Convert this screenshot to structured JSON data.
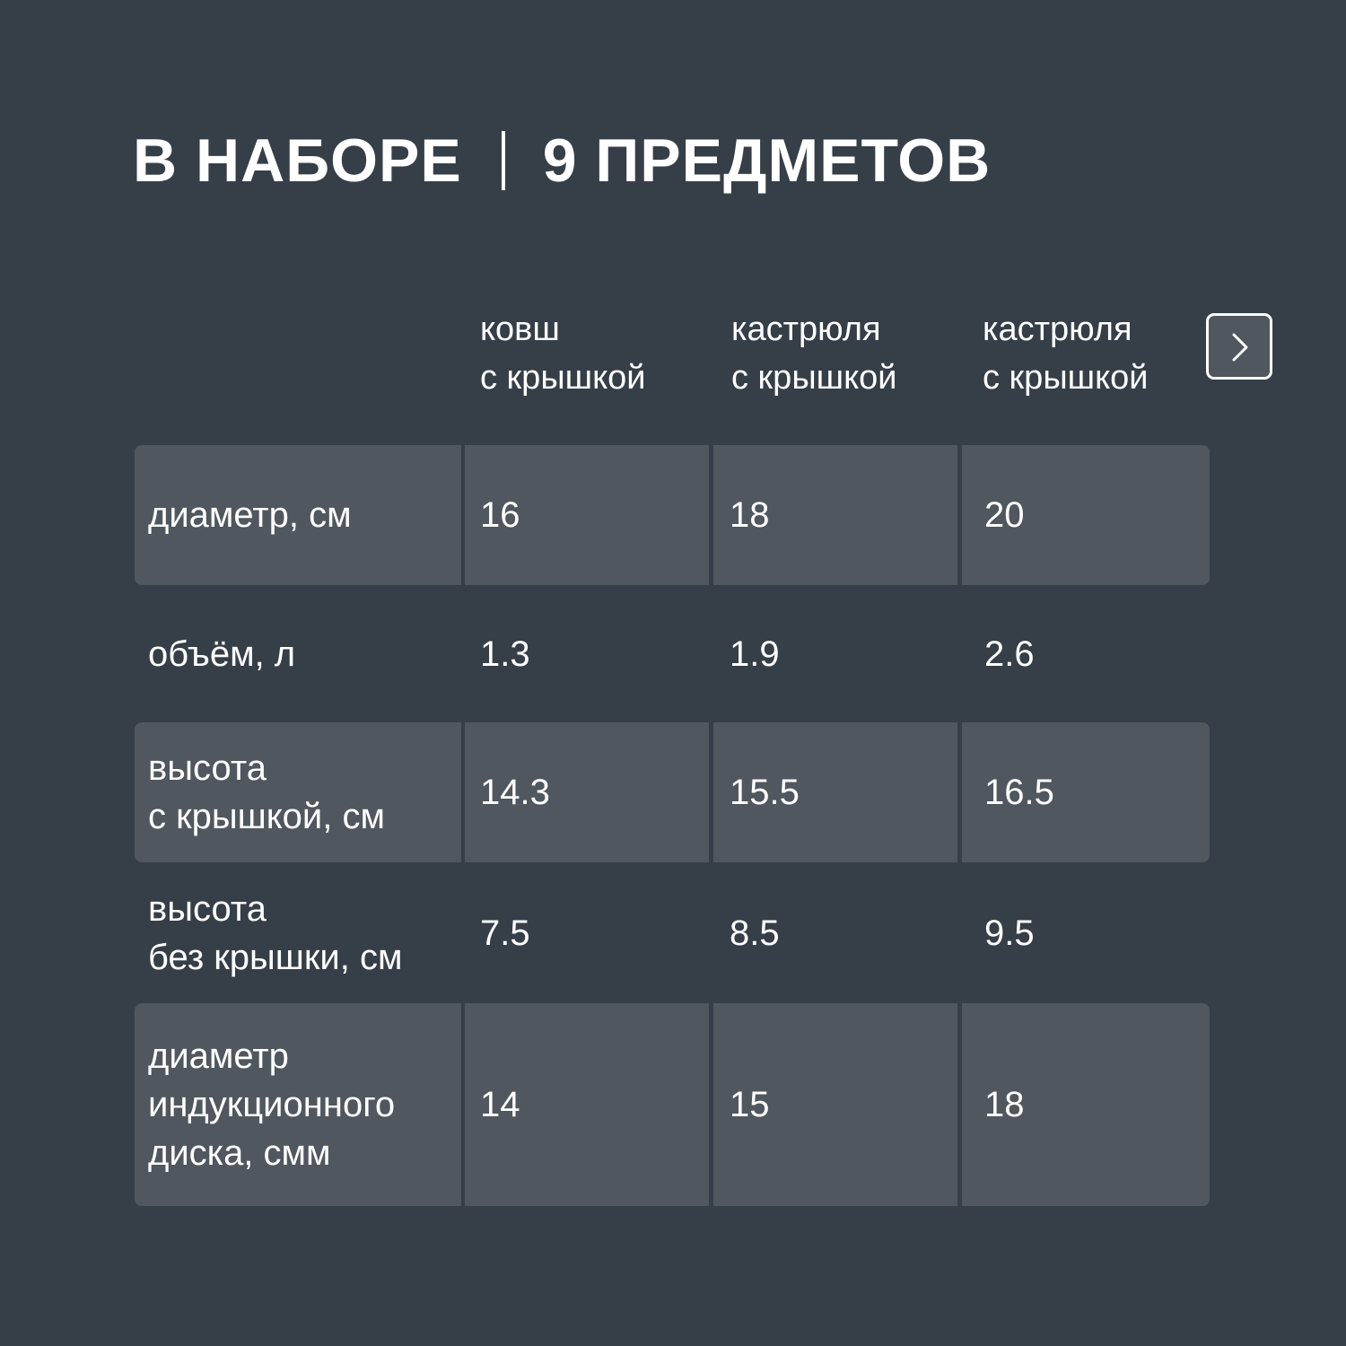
{
  "title": {
    "left": "В НАБОРЕ",
    "right": "9 ПРЕДМЕТОВ"
  },
  "columns": [
    "ковш\nс крышкой",
    "кастрюля\nс крышкой",
    "кастрюля\nс крышкой"
  ],
  "next_button_icon": "chevron-right-icon",
  "rows": [
    {
      "label": "диаметр, см",
      "values": [
        "16",
        "18",
        "20"
      ]
    },
    {
      "label": "объём, л",
      "values": [
        "1.3",
        "1.9",
        "2.6"
      ]
    },
    {
      "label": "высота\nс крышкой, см",
      "values": [
        "14.3",
        "15.5",
        "16.5"
      ]
    },
    {
      "label": "высота\nбез крышки, см",
      "values": [
        "7.5",
        "8.5",
        "9.5"
      ]
    },
    {
      "label": "диаметр\nиндукционного\nдиска, смм",
      "values": [
        "14",
        "15",
        "18"
      ]
    }
  ],
  "colors": {
    "background": "#363f48",
    "cell": "#50575e",
    "text": "#ffffff"
  }
}
